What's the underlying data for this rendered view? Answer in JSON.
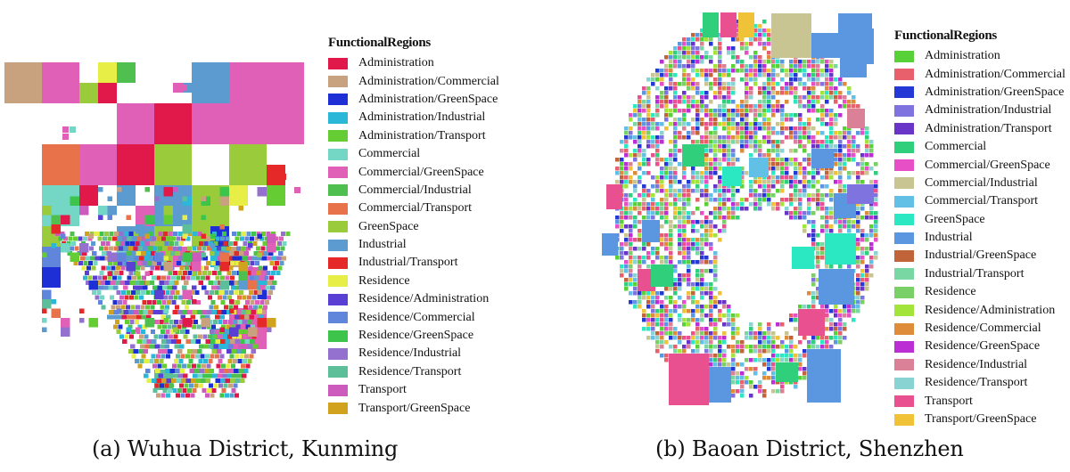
{
  "panels": [
    {
      "caption": "(a) Wuhua District, Kunming",
      "legend_title": "FunctionalRegions",
      "categories": [
        {
          "name": "Administration",
          "color": "#e0194a"
        },
        {
          "name": "Administration/Commercial",
          "color": "#c8a27e"
        },
        {
          "name": "Administration/GreenSpace",
          "color": "#1f2fd6"
        },
        {
          "name": "Administration/Industrial",
          "color": "#2bb7d8"
        },
        {
          "name": "Administration/Transport",
          "color": "#66cc33"
        },
        {
          "name": "Commercial",
          "color": "#74d6c4"
        },
        {
          "name": "Commercial/GreenSpace",
          "color": "#e060b8"
        },
        {
          "name": "Commercial/Industrial",
          "color": "#4fbf4f"
        },
        {
          "name": "Commercial/Transport",
          "color": "#e8734a"
        },
        {
          "name": "GreenSpace",
          "color": "#9acb3a"
        },
        {
          "name": "Industrial",
          "color": "#5b9bd0"
        },
        {
          "name": "Industrial/Transport",
          "color": "#e52828"
        },
        {
          "name": "Residence",
          "color": "#e7ef47"
        },
        {
          "name": "Residence/Administration",
          "color": "#5a3fd4"
        },
        {
          "name": "Residence/Commercial",
          "color": "#5f86db"
        },
        {
          "name": "Residence/GreenSpace",
          "color": "#3cc44b"
        },
        {
          "name": "Residence/Industrial",
          "color": "#9470cf"
        },
        {
          "name": "Residence/Transport",
          "color": "#5cbf9a"
        },
        {
          "name": "Transport",
          "color": "#cc5bbd"
        },
        {
          "name": "Transport/GreenSpace",
          "color": "#d1a21e"
        }
      ]
    },
    {
      "caption": "(b) Baoan District, Shenzhen",
      "legend_title": "FunctionalRegions",
      "categories": [
        {
          "name": "Administration",
          "color": "#57d137"
        },
        {
          "name": "Administration/Commercial",
          "color": "#e8606b"
        },
        {
          "name": "Administration/GreenSpace",
          "color": "#2438d6"
        },
        {
          "name": "Administration/Industrial",
          "color": "#7f73df"
        },
        {
          "name": "Administration/Transport",
          "color": "#6934c8"
        },
        {
          "name": "Commercial",
          "color": "#2fcf7c"
        },
        {
          "name": "Commercial/GreenSpace",
          "color": "#e64fc5"
        },
        {
          "name": "Commercial/Industrial",
          "color": "#c9c592"
        },
        {
          "name": "Commercial/Transport",
          "color": "#62bfe6"
        },
        {
          "name": "GreenSpace",
          "color": "#2ce8c2"
        },
        {
          "name": "Industrial",
          "color": "#5b96e0"
        },
        {
          "name": "Industrial/GreenSpace",
          "color": "#c2643a"
        },
        {
          "name": "Industrial/Transport",
          "color": "#79d7a4"
        },
        {
          "name": "Residence",
          "color": "#7acf66"
        },
        {
          "name": "Residence/Administration",
          "color": "#a2e43a"
        },
        {
          "name": "Residence/Commercial",
          "color": "#de8c3a"
        },
        {
          "name": "Residence/GreenSpace",
          "color": "#bb2ed4"
        },
        {
          "name": "Residence/Industrial",
          "color": "#da8097"
        },
        {
          "name": "Residence/Transport",
          "color": "#8ad3d3"
        },
        {
          "name": "Transport",
          "color": "#e8508f"
        },
        {
          "name": "Transport/GreenSpace",
          "color": "#efc237"
        }
      ]
    }
  ]
}
